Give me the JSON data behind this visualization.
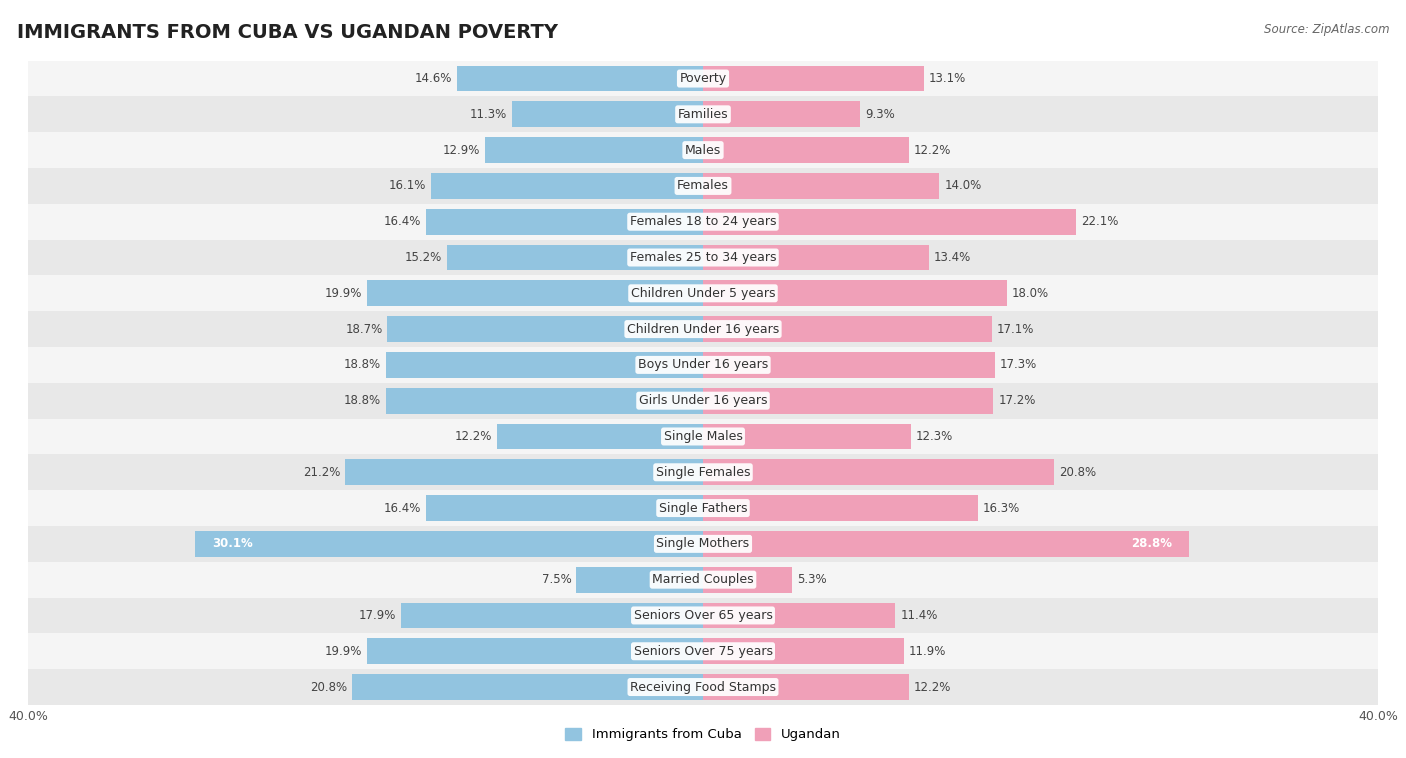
{
  "title": "IMMIGRANTS FROM CUBA VS UGANDAN POVERTY",
  "source": "Source: ZipAtlas.com",
  "categories": [
    "Poverty",
    "Families",
    "Males",
    "Females",
    "Females 18 to 24 years",
    "Females 25 to 34 years",
    "Children Under 5 years",
    "Children Under 16 years",
    "Boys Under 16 years",
    "Girls Under 16 years",
    "Single Males",
    "Single Females",
    "Single Fathers",
    "Single Mothers",
    "Married Couples",
    "Seniors Over 65 years",
    "Seniors Over 75 years",
    "Receiving Food Stamps"
  ],
  "cuba_values": [
    14.6,
    11.3,
    12.9,
    16.1,
    16.4,
    15.2,
    19.9,
    18.7,
    18.8,
    18.8,
    12.2,
    21.2,
    16.4,
    30.1,
    7.5,
    17.9,
    19.9,
    20.8
  ],
  "ugandan_values": [
    13.1,
    9.3,
    12.2,
    14.0,
    22.1,
    13.4,
    18.0,
    17.1,
    17.3,
    17.2,
    12.3,
    20.8,
    16.3,
    28.8,
    5.3,
    11.4,
    11.9,
    12.2
  ],
  "cuba_color": "#92C4E0",
  "ugandan_color": "#F0A0B8",
  "cuba_label": "Immigrants from Cuba",
  "ugandan_label": "Ugandan",
  "axis_max": 40.0,
  "bar_height": 0.72,
  "background_color": "#ffffff",
  "row_colors": [
    "#f5f5f5",
    "#e8e8e8"
  ],
  "title_fontsize": 14,
  "label_fontsize": 9,
  "value_fontsize": 8.5
}
